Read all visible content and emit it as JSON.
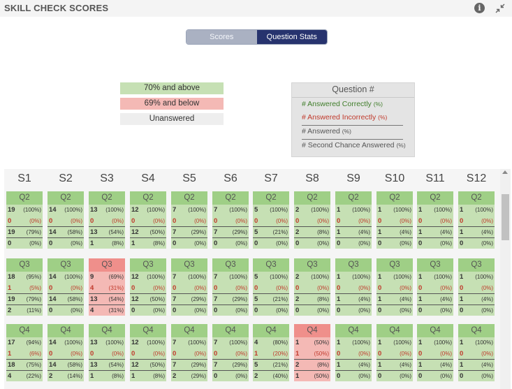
{
  "header": {
    "title": "SKILL CHECK SCORES",
    "info_glyph": "i",
    "icons": [
      "info-icon",
      "collapse-icon"
    ]
  },
  "toggle": {
    "scores": "Scores",
    "question_stats": "Question Stats",
    "selected": "Question Stats"
  },
  "legend": {
    "green": "70% and above",
    "red": "69% and below",
    "gray": "Unanswered"
  },
  "colors": {
    "green": "#c6e0b4",
    "green_head": "#9fcf86",
    "red": "#f4b9b5",
    "red_head": "#ef8f8b",
    "gray": "#eeeeee",
    "active_toggle": "#27336e"
  },
  "key": {
    "title": "Question #",
    "answered_correctly": "# Answered Correctly",
    "answered_incorrectly": "# Answered Incorrectly",
    "answered": "# Answered",
    "second_chance": "# Second Chance Answered",
    "pct": "(%)"
  },
  "students": [
    "S1",
    "S2",
    "S3",
    "S4",
    "S5",
    "S6",
    "S7",
    "S8",
    "S9",
    "S10",
    "S11",
    "S12"
  ],
  "rows": [
    {
      "question": "Q2",
      "cards": [
        {
          "status": "green",
          "vals": [
            [
              "19",
              "(100%)"
            ],
            [
              "0",
              "(0%)"
            ],
            [
              "19",
              "(79%)"
            ],
            [
              "0",
              "(0%)"
            ]
          ]
        },
        {
          "status": "green",
          "vals": [
            [
              "14",
              "(100%)"
            ],
            [
              "0",
              "(0%)"
            ],
            [
              "14",
              "(58%)"
            ],
            [
              "0",
              "(0%)"
            ]
          ]
        },
        {
          "status": "green",
          "vals": [
            [
              "13",
              "(100%)"
            ],
            [
              "0",
              "(0%)"
            ],
            [
              "13",
              "(54%)"
            ],
            [
              "1",
              "(8%)"
            ]
          ]
        },
        {
          "status": "green",
          "vals": [
            [
              "12",
              "(100%)"
            ],
            [
              "0",
              "(0%)"
            ],
            [
              "12",
              "(50%)"
            ],
            [
              "1",
              "(8%)"
            ]
          ]
        },
        {
          "status": "green",
          "vals": [
            [
              "7",
              "(100%)"
            ],
            [
              "0",
              "(0%)"
            ],
            [
              "7",
              "(29%)"
            ],
            [
              "0",
              "(0%)"
            ]
          ]
        },
        {
          "status": "green",
          "vals": [
            [
              "7",
              "(100%)"
            ],
            [
              "0",
              "(0%)"
            ],
            [
              "7",
              "(29%)"
            ],
            [
              "0",
              "(0%)"
            ]
          ]
        },
        {
          "status": "green",
          "vals": [
            [
              "5",
              "(100%)"
            ],
            [
              "0",
              "(0%)"
            ],
            [
              "5",
              "(21%)"
            ],
            [
              "0",
              "(0%)"
            ]
          ]
        },
        {
          "status": "green",
          "vals": [
            [
              "2",
              "(100%)"
            ],
            [
              "0",
              "(0%)"
            ],
            [
              "2",
              "(8%)"
            ],
            [
              "0",
              "(0%)"
            ]
          ]
        },
        {
          "status": "green",
          "vals": [
            [
              "1",
              "(100%)"
            ],
            [
              "0",
              "(0%)"
            ],
            [
              "1",
              "(4%)"
            ],
            [
              "0",
              "(0%)"
            ]
          ]
        },
        {
          "status": "green",
          "vals": [
            [
              "1",
              "(100%)"
            ],
            [
              "0",
              "(0%)"
            ],
            [
              "1",
              "(4%)"
            ],
            [
              "0",
              "(0%)"
            ]
          ]
        },
        {
          "status": "green",
          "vals": [
            [
              "1",
              "(100%)"
            ],
            [
              "0",
              "(0%)"
            ],
            [
              "1",
              "(4%)"
            ],
            [
              "0",
              "(0%)"
            ]
          ]
        },
        {
          "status": "green",
          "vals": [
            [
              "1",
              "(100%)"
            ],
            [
              "0",
              "(0%)"
            ],
            [
              "1",
              "(4%)"
            ],
            [
              "0",
              "(0%)"
            ]
          ]
        }
      ]
    },
    {
      "question": "Q3",
      "cards": [
        {
          "status": "green",
          "vals": [
            [
              "18",
              "(95%)"
            ],
            [
              "1",
              "(5%)"
            ],
            [
              "19",
              "(79%)"
            ],
            [
              "2",
              "(11%)"
            ]
          ]
        },
        {
          "status": "green",
          "vals": [
            [
              "14",
              "(100%)"
            ],
            [
              "0",
              "(0%)"
            ],
            [
              "14",
              "(58%)"
            ],
            [
              "0",
              "(0%)"
            ]
          ]
        },
        {
          "status": "red",
          "vals": [
            [
              "9",
              "(69%)"
            ],
            [
              "4",
              "(31%)"
            ],
            [
              "13",
              "(54%)"
            ],
            [
              "4",
              "(31%)"
            ]
          ]
        },
        {
          "status": "green",
          "vals": [
            [
              "12",
              "(100%)"
            ],
            [
              "0",
              "(0%)"
            ],
            [
              "12",
              "(50%)"
            ],
            [
              "0",
              "(0%)"
            ]
          ]
        },
        {
          "status": "green",
          "vals": [
            [
              "7",
              "(100%)"
            ],
            [
              "0",
              "(0%)"
            ],
            [
              "7",
              "(29%)"
            ],
            [
              "0",
              "(0%)"
            ]
          ]
        },
        {
          "status": "green",
          "vals": [
            [
              "7",
              "(100%)"
            ],
            [
              "0",
              "(0%)"
            ],
            [
              "7",
              "(29%)"
            ],
            [
              "0",
              "(0%)"
            ]
          ]
        },
        {
          "status": "green",
          "vals": [
            [
              "5",
              "(100%)"
            ],
            [
              "0",
              "(0%)"
            ],
            [
              "5",
              "(21%)"
            ],
            [
              "0",
              "(0%)"
            ]
          ]
        },
        {
          "status": "green",
          "vals": [
            [
              "2",
              "(100%)"
            ],
            [
              "0",
              "(0%)"
            ],
            [
              "2",
              "(8%)"
            ],
            [
              "0",
              "(0%)"
            ]
          ]
        },
        {
          "status": "green",
          "vals": [
            [
              "1",
              "(100%)"
            ],
            [
              "0",
              "(0%)"
            ],
            [
              "1",
              "(4%)"
            ],
            [
              "0",
              "(0%)"
            ]
          ]
        },
        {
          "status": "green",
          "vals": [
            [
              "1",
              "(100%)"
            ],
            [
              "0",
              "(0%)"
            ],
            [
              "1",
              "(4%)"
            ],
            [
              "0",
              "(0%)"
            ]
          ]
        },
        {
          "status": "green",
          "vals": [
            [
              "1",
              "(100%)"
            ],
            [
              "0",
              "(0%)"
            ],
            [
              "1",
              "(4%)"
            ],
            [
              "0",
              "(0%)"
            ]
          ]
        },
        {
          "status": "green",
          "vals": [
            [
              "1",
              "(100%)"
            ],
            [
              "0",
              "(0%)"
            ],
            [
              "1",
              "(4%)"
            ],
            [
              "0",
              "(0%)"
            ]
          ]
        }
      ]
    },
    {
      "question": "Q4",
      "cards": [
        {
          "status": "green",
          "vals": [
            [
              "17",
              "(94%)"
            ],
            [
              "1",
              "(6%)"
            ],
            [
              "18",
              "(75%)"
            ],
            [
              "4",
              "(22%)"
            ]
          ]
        },
        {
          "status": "green",
          "vals": [
            [
              "14",
              "(100%)"
            ],
            [
              "0",
              "(0%)"
            ],
            [
              "14",
              "(58%)"
            ],
            [
              "2",
              "(14%)"
            ]
          ]
        },
        {
          "status": "green",
          "vals": [
            [
              "13",
              "(100%)"
            ],
            [
              "0",
              "(0%)"
            ],
            [
              "13",
              "(54%)"
            ],
            [
              "1",
              "(8%)"
            ]
          ]
        },
        {
          "status": "green",
          "vals": [
            [
              "12",
              "(100%)"
            ],
            [
              "0",
              "(0%)"
            ],
            [
              "12",
              "(50%)"
            ],
            [
              "1",
              "(8%)"
            ]
          ]
        },
        {
          "status": "green",
          "vals": [
            [
              "7",
              "(100%)"
            ],
            [
              "0",
              "(0%)"
            ],
            [
              "7",
              "(29%)"
            ],
            [
              "2",
              "(29%)"
            ]
          ]
        },
        {
          "status": "green",
          "vals": [
            [
              "7",
              "(100%)"
            ],
            [
              "0",
              "(0%)"
            ],
            [
              "7",
              "(29%)"
            ],
            [
              "0",
              "(0%)"
            ]
          ]
        },
        {
          "status": "green",
          "vals": [
            [
              "4",
              "(80%)"
            ],
            [
              "1",
              "(20%)"
            ],
            [
              "5",
              "(21%)"
            ],
            [
              "2",
              "(40%)"
            ]
          ]
        },
        {
          "status": "red",
          "vals": [
            [
              "1",
              "(50%)"
            ],
            [
              "1",
              "(50%)"
            ],
            [
              "2",
              "(8%)"
            ],
            [
              "1",
              "(50%)"
            ]
          ]
        },
        {
          "status": "green",
          "vals": [
            [
              "1",
              "(100%)"
            ],
            [
              "0",
              "(0%)"
            ],
            [
              "1",
              "(4%)"
            ],
            [
              "0",
              "(0%)"
            ]
          ]
        },
        {
          "status": "green",
          "vals": [
            [
              "1",
              "(100%)"
            ],
            [
              "0",
              "(0%)"
            ],
            [
              "1",
              "(4%)"
            ],
            [
              "0",
              "(0%)"
            ]
          ]
        },
        {
          "status": "green",
          "vals": [
            [
              "1",
              "(100%)"
            ],
            [
              "0",
              "(0%)"
            ],
            [
              "1",
              "(4%)"
            ],
            [
              "0",
              "(0%)"
            ]
          ]
        },
        {
          "status": "green",
          "vals": [
            [
              "1",
              "(100%)"
            ],
            [
              "0",
              "(0%)"
            ],
            [
              "1",
              "(4%)"
            ],
            [
              "0",
              "(0%)"
            ]
          ]
        }
      ]
    }
  ]
}
